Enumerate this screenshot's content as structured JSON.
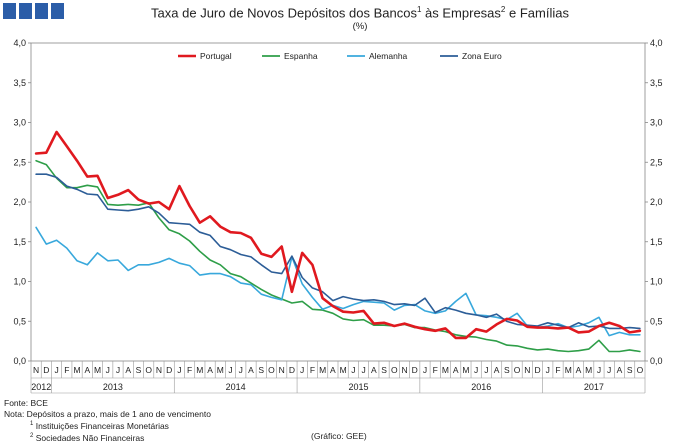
{
  "header": {
    "title_main": "Taxa de Juro de Novos Depósitos dos Bancos",
    "title_sup1": "1",
    "title_mid": " às Empresas",
    "title_sup2": "2",
    "title_end": " e Famílias",
    "subtitle": "(%)"
  },
  "notes": {
    "source": "Fonte: BCE",
    "note": "Nota: Depósitos a prazo, mais de 1 ano de vencimento",
    "fn1_mark": "1",
    "fn1_text": " Instituições Financeiras Monetárias",
    "fn2_mark": "2",
    "fn2_text": " Sociedades  Não Financeiras",
    "credit": "(Gráfico: GEE)"
  },
  "colors": {
    "portugal": "#e0191f",
    "espanha": "#2e9e48",
    "alemanha": "#38a8dc",
    "zona_euro": "#2c5d97",
    "logo": "#2b5da8"
  },
  "chart_data": {
    "type": "line",
    "title": "Taxa de Juro de Novos Depósitos dos Bancos às Empresas e Famílias",
    "ylabel": "(%)",
    "ylim": [
      0,
      4
    ],
    "yticks": [
      "0,0",
      "0,5",
      "1,0",
      "1,5",
      "2,0",
      "2,5",
      "3,0",
      "3,5",
      "4,0"
    ],
    "legend_position": "top",
    "months": [
      "N",
      "D",
      "J",
      "F",
      "M",
      "A",
      "M",
      "J",
      "J",
      "A",
      "S",
      "O",
      "N",
      "D",
      "J",
      "F",
      "M",
      "A",
      "M",
      "J",
      "J",
      "A",
      "S",
      "O",
      "N",
      "D",
      "J",
      "F",
      "M",
      "A",
      "M",
      "J",
      "J",
      "A",
      "S",
      "O",
      "N",
      "D",
      "J",
      "F",
      "M",
      "A",
      "M",
      "J",
      "J",
      "A",
      "S",
      "O",
      "N",
      "D",
      "J",
      "F",
      "M",
      "A",
      "M",
      "J",
      "J",
      "A",
      "S",
      "O"
    ],
    "years": [
      {
        "label": "2012",
        "start": 0,
        "count": 2
      },
      {
        "label": "2013",
        "start": 2,
        "count": 12
      },
      {
        "label": "2014",
        "start": 14,
        "count": 12
      },
      {
        "label": "2015",
        "start": 26,
        "count": 12
      },
      {
        "label": "2016",
        "start": 38,
        "count": 12
      },
      {
        "label": "2017",
        "start": 50,
        "count": 10
      }
    ],
    "series": [
      {
        "name": "Portugal",
        "color": "#e0191f",
        "width": 2.6,
        "values": [
          2.61,
          2.62,
          2.88,
          2.7,
          2.52,
          2.32,
          2.33,
          2.05,
          2.09,
          2.15,
          2.03,
          1.98,
          2.0,
          1.91,
          2.2,
          1.95,
          1.74,
          1.82,
          1.69,
          1.62,
          1.61,
          1.55,
          1.35,
          1.31,
          1.44,
          0.87,
          1.36,
          1.21,
          0.79,
          0.69,
          0.62,
          0.61,
          0.63,
          0.47,
          0.48,
          0.44,
          0.47,
          0.43,
          0.4,
          0.38,
          0.41,
          0.29,
          0.29,
          0.4,
          0.37,
          0.46,
          0.53,
          0.51,
          0.43,
          0.42,
          0.42,
          0.41,
          0.42,
          0.36,
          0.37,
          0.44,
          0.48,
          0.44,
          0.36,
          0.38
        ]
      },
      {
        "name": "Espanha",
        "color": "#2e9e48",
        "width": 1.6,
        "values": [
          2.52,
          2.47,
          2.3,
          2.18,
          2.18,
          2.21,
          2.19,
          1.97,
          1.96,
          1.97,
          1.96,
          1.99,
          1.8,
          1.65,
          1.6,
          1.51,
          1.38,
          1.27,
          1.21,
          1.1,
          1.06,
          0.98,
          0.9,
          0.83,
          0.78,
          0.73,
          0.75,
          0.65,
          0.64,
          0.6,
          0.53,
          0.51,
          0.52,
          0.45,
          0.45,
          0.44,
          0.46,
          0.42,
          0.42,
          0.39,
          0.37,
          0.33,
          0.31,
          0.3,
          0.27,
          0.25,
          0.2,
          0.19,
          0.16,
          0.14,
          0.15,
          0.13,
          0.12,
          0.13,
          0.15,
          0.26,
          0.12,
          0.12,
          0.14,
          0.12
        ]
      },
      {
        "name": "Alemanha",
        "color": "#38a8dc",
        "width": 1.6,
        "values": [
          1.68,
          1.47,
          1.52,
          1.42,
          1.26,
          1.21,
          1.36,
          1.26,
          1.27,
          1.14,
          1.21,
          1.21,
          1.24,
          1.29,
          1.23,
          1.2,
          1.08,
          1.1,
          1.1,
          1.06,
          0.98,
          0.96,
          0.84,
          0.8,
          0.77,
          1.31,
          0.97,
          0.8,
          0.65,
          0.7,
          0.66,
          0.71,
          0.75,
          0.74,
          0.73,
          0.64,
          0.7,
          0.71,
          0.63,
          0.6,
          0.63,
          0.75,
          0.85,
          0.58,
          0.57,
          0.55,
          0.52,
          0.6,
          0.44,
          0.42,
          0.44,
          0.47,
          0.42,
          0.44,
          0.48,
          0.55,
          0.32,
          0.36,
          0.33,
          0.33
        ]
      },
      {
        "name": "Zona Euro",
        "color": "#2c5d97",
        "width": 1.6,
        "values": [
          2.35,
          2.35,
          2.31,
          2.2,
          2.16,
          2.1,
          2.09,
          1.91,
          1.9,
          1.89,
          1.91,
          1.94,
          1.86,
          1.74,
          1.73,
          1.72,
          1.62,
          1.58,
          1.44,
          1.4,
          1.34,
          1.31,
          1.21,
          1.12,
          1.1,
          1.32,
          1.05,
          0.92,
          0.87,
          0.76,
          0.81,
          0.78,
          0.76,
          0.77,
          0.75,
          0.71,
          0.72,
          0.7,
          0.79,
          0.61,
          0.67,
          0.64,
          0.6,
          0.58,
          0.55,
          0.59,
          0.5,
          0.46,
          0.45,
          0.44,
          0.48,
          0.45,
          0.42,
          0.48,
          0.43,
          0.44,
          0.41,
          0.41,
          0.42,
          0.41
        ]
      }
    ]
  }
}
